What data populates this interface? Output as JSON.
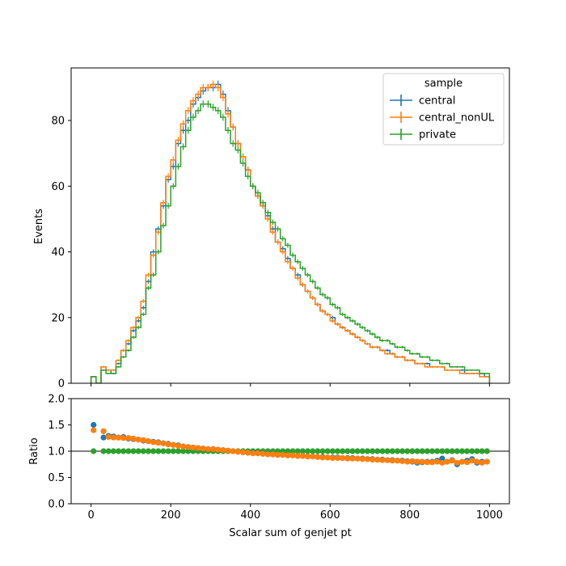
{
  "chart_data": [
    {
      "type": "line",
      "drawstyle": "step",
      "xlabel": "",
      "ylabel": "Events",
      "xlim": [
        -50,
        1050
      ],
      "ylim": [
        0,
        96
      ],
      "yticks": [
        0,
        20,
        40,
        60,
        80
      ],
      "x_bin_edges": [
        0,
        12.5,
        25,
        37.5,
        50,
        62.5,
        75,
        87.5,
        100,
        112.5,
        125,
        137.5,
        150,
        162.5,
        175,
        187.5,
        200,
        212.5,
        225,
        237.5,
        250,
        262.5,
        275,
        287.5,
        300,
        312.5,
        325,
        337.5,
        350,
        362.5,
        375,
        387.5,
        400,
        412.5,
        425,
        437.5,
        450,
        462.5,
        475,
        487.5,
        500,
        512.5,
        525,
        537.5,
        550,
        562.5,
        575,
        587.5,
        600,
        612.5,
        625,
        637.5,
        650,
        662.5,
        675,
        687.5,
        700,
        712.5,
        725,
        737.5,
        750,
        762.5,
        775,
        787.5,
        800,
        812.5,
        825,
        837.5,
        850,
        862.5,
        875,
        887.5,
        900,
        912.5,
        925,
        937.5,
        950,
        962.5,
        975,
        987.5,
        1000
      ],
      "legend": {
        "title": "sample",
        "position": "upper right"
      },
      "series": [
        {
          "name": "central",
          "color": "#1f77b4",
          "error_bars": true,
          "values": [
            2,
            0,
            5,
            4,
            3,
            6,
            10,
            12,
            16,
            19,
            23,
            31,
            40,
            47,
            54,
            62,
            66,
            73,
            77,
            80,
            85,
            87,
            89,
            90,
            90,
            91,
            88,
            83,
            78,
            73,
            69,
            65,
            60,
            57,
            54,
            51,
            47,
            43,
            41,
            38,
            35,
            33,
            30,
            28,
            26,
            24,
            22,
            21,
            20,
            18,
            17,
            16,
            15,
            14,
            13,
            12,
            11,
            11,
            10,
            10,
            9,
            8,
            8,
            7,
            7,
            6,
            6,
            6,
            5,
            5,
            5,
            4,
            4,
            4,
            4,
            3,
            3,
            3,
            3,
            2
          ]
        },
        {
          "name": "central_nonUL",
          "color": "#ff7f0e",
          "error_bars": true,
          "values": [
            2,
            0,
            5,
            4,
            4,
            7,
            10,
            13,
            17,
            20,
            25,
            33,
            39,
            46,
            55,
            63,
            68,
            74,
            79,
            83,
            86,
            88,
            90,
            90,
            91,
            90,
            87,
            82,
            78,
            73,
            69,
            65,
            60,
            57,
            54,
            50,
            46,
            43,
            40,
            37,
            35,
            32,
            30,
            28,
            26,
            24,
            22,
            21,
            19,
            18,
            17,
            16,
            15,
            14,
            13,
            12,
            11,
            11,
            10,
            9,
            9,
            8,
            8,
            7,
            7,
            6,
            6,
            5,
            5,
            5,
            5,
            4,
            4,
            4,
            3,
            3,
            3,
            3,
            2,
            2
          ]
        },
        {
          "name": "private",
          "color": "#2ca02c",
          "error_bars": true,
          "values": [
            2,
            0,
            4,
            3,
            3,
            5,
            8,
            10,
            14,
            17,
            21,
            29,
            33,
            40,
            48,
            54,
            60,
            66,
            72,
            77,
            81,
            83,
            85,
            85,
            84,
            83,
            81,
            77,
            73,
            71,
            67,
            63,
            60,
            58,
            55,
            52,
            49,
            47,
            44,
            42,
            39,
            37,
            35,
            33,
            31,
            29,
            27,
            26,
            24,
            23,
            21,
            20,
            19,
            18,
            17,
            16,
            15,
            14,
            13,
            13,
            12,
            11,
            11,
            10,
            9,
            9,
            8,
            8,
            7,
            7,
            6,
            6,
            5,
            5,
            5,
            4,
            4,
            4,
            3,
            3
          ]
        }
      ]
    },
    {
      "type": "scatter",
      "xlabel": "Scalar sum of genjet pt",
      "ylabel": "Ratio",
      "xlim": [
        -50,
        1050
      ],
      "ylim": [
        0.0,
        2.0
      ],
      "xticks": [
        0,
        200,
        400,
        600,
        800,
        1000
      ],
      "yticks": [
        "0.0",
        "0.5",
        "1.0",
        "1.5",
        "2.0"
      ],
      "reference_line": 1.0,
      "series": [
        {
          "name": "private",
          "color": "#2ca02c",
          "values": [
            1,
            null,
            1,
            1,
            1,
            1,
            1,
            1,
            1,
            1,
            1,
            1,
            1,
            1,
            1,
            1,
            1,
            1,
            1,
            1,
            1,
            1,
            1,
            1,
            1,
            1,
            1,
            1,
            1,
            1,
            1,
            1,
            1,
            1,
            1,
            1,
            1,
            1,
            1,
            1,
            1,
            1,
            1,
            1,
            1,
            1,
            1,
            1,
            1,
            1,
            1,
            1,
            1,
            1,
            1,
            1,
            1,
            1,
            1,
            1,
            1,
            1,
            1,
            1,
            1,
            1,
            1,
            1,
            1,
            1,
            1,
            1,
            1,
            1,
            1,
            1,
            1,
            1,
            1,
            1
          ]
        },
        {
          "name": "central",
          "color": "#1f77b4",
          "values": [
            1.5,
            null,
            1.26,
            1.29,
            1.28,
            1.26,
            1.27,
            1.24,
            1.23,
            1.22,
            1.2,
            1.19,
            1.18,
            1.17,
            1.15,
            1.14,
            1.12,
            1.11,
            1.09,
            1.08,
            1.07,
            1.06,
            1.05,
            1.04,
            1.04,
            1.03,
            1.02,
            1.01,
            1.0,
            0.99,
            0.98,
            0.97,
            0.97,
            0.96,
            0.95,
            0.95,
            0.94,
            0.93,
            0.93,
            0.92,
            0.92,
            0.91,
            0.91,
            0.9,
            0.9,
            0.89,
            0.89,
            0.88,
            0.88,
            0.88,
            0.87,
            0.87,
            0.87,
            0.86,
            0.86,
            0.85,
            0.85,
            0.84,
            0.84,
            0.83,
            0.83,
            0.82,
            0.82,
            0.81,
            0.8,
            0.78,
            0.79,
            0.8,
            0.8,
            0.82,
            0.86,
            0.8,
            0.83,
            0.75,
            0.8,
            0.82,
            0.85,
            0.78,
            0.8,
            0.8
          ]
        },
        {
          "name": "central_nonUL",
          "color": "#ff7f0e",
          "values": [
            1.4,
            null,
            1.38,
            1.27,
            1.26,
            1.26,
            1.25,
            1.25,
            1.24,
            1.22,
            1.21,
            1.19,
            1.17,
            1.16,
            1.15,
            1.13,
            1.12,
            1.1,
            1.09,
            1.08,
            1.07,
            1.06,
            1.05,
            1.04,
            1.04,
            1.03,
            1.02,
            1.01,
            1.0,
            0.99,
            0.98,
            0.97,
            0.96,
            0.96,
            0.95,
            0.94,
            0.94,
            0.93,
            0.93,
            0.92,
            0.92,
            0.91,
            0.91,
            0.9,
            0.9,
            0.89,
            0.88,
            0.88,
            0.87,
            0.87,
            0.87,
            0.86,
            0.86,
            0.86,
            0.85,
            0.85,
            0.84,
            0.84,
            0.83,
            0.83,
            0.82,
            0.82,
            0.81,
            0.8,
            0.81,
            0.8,
            0.8,
            0.79,
            0.79,
            0.8,
            0.78,
            0.8,
            0.82,
            0.78,
            0.8,
            0.79,
            0.82,
            0.8,
            0.78,
            0.8
          ]
        }
      ]
    }
  ]
}
